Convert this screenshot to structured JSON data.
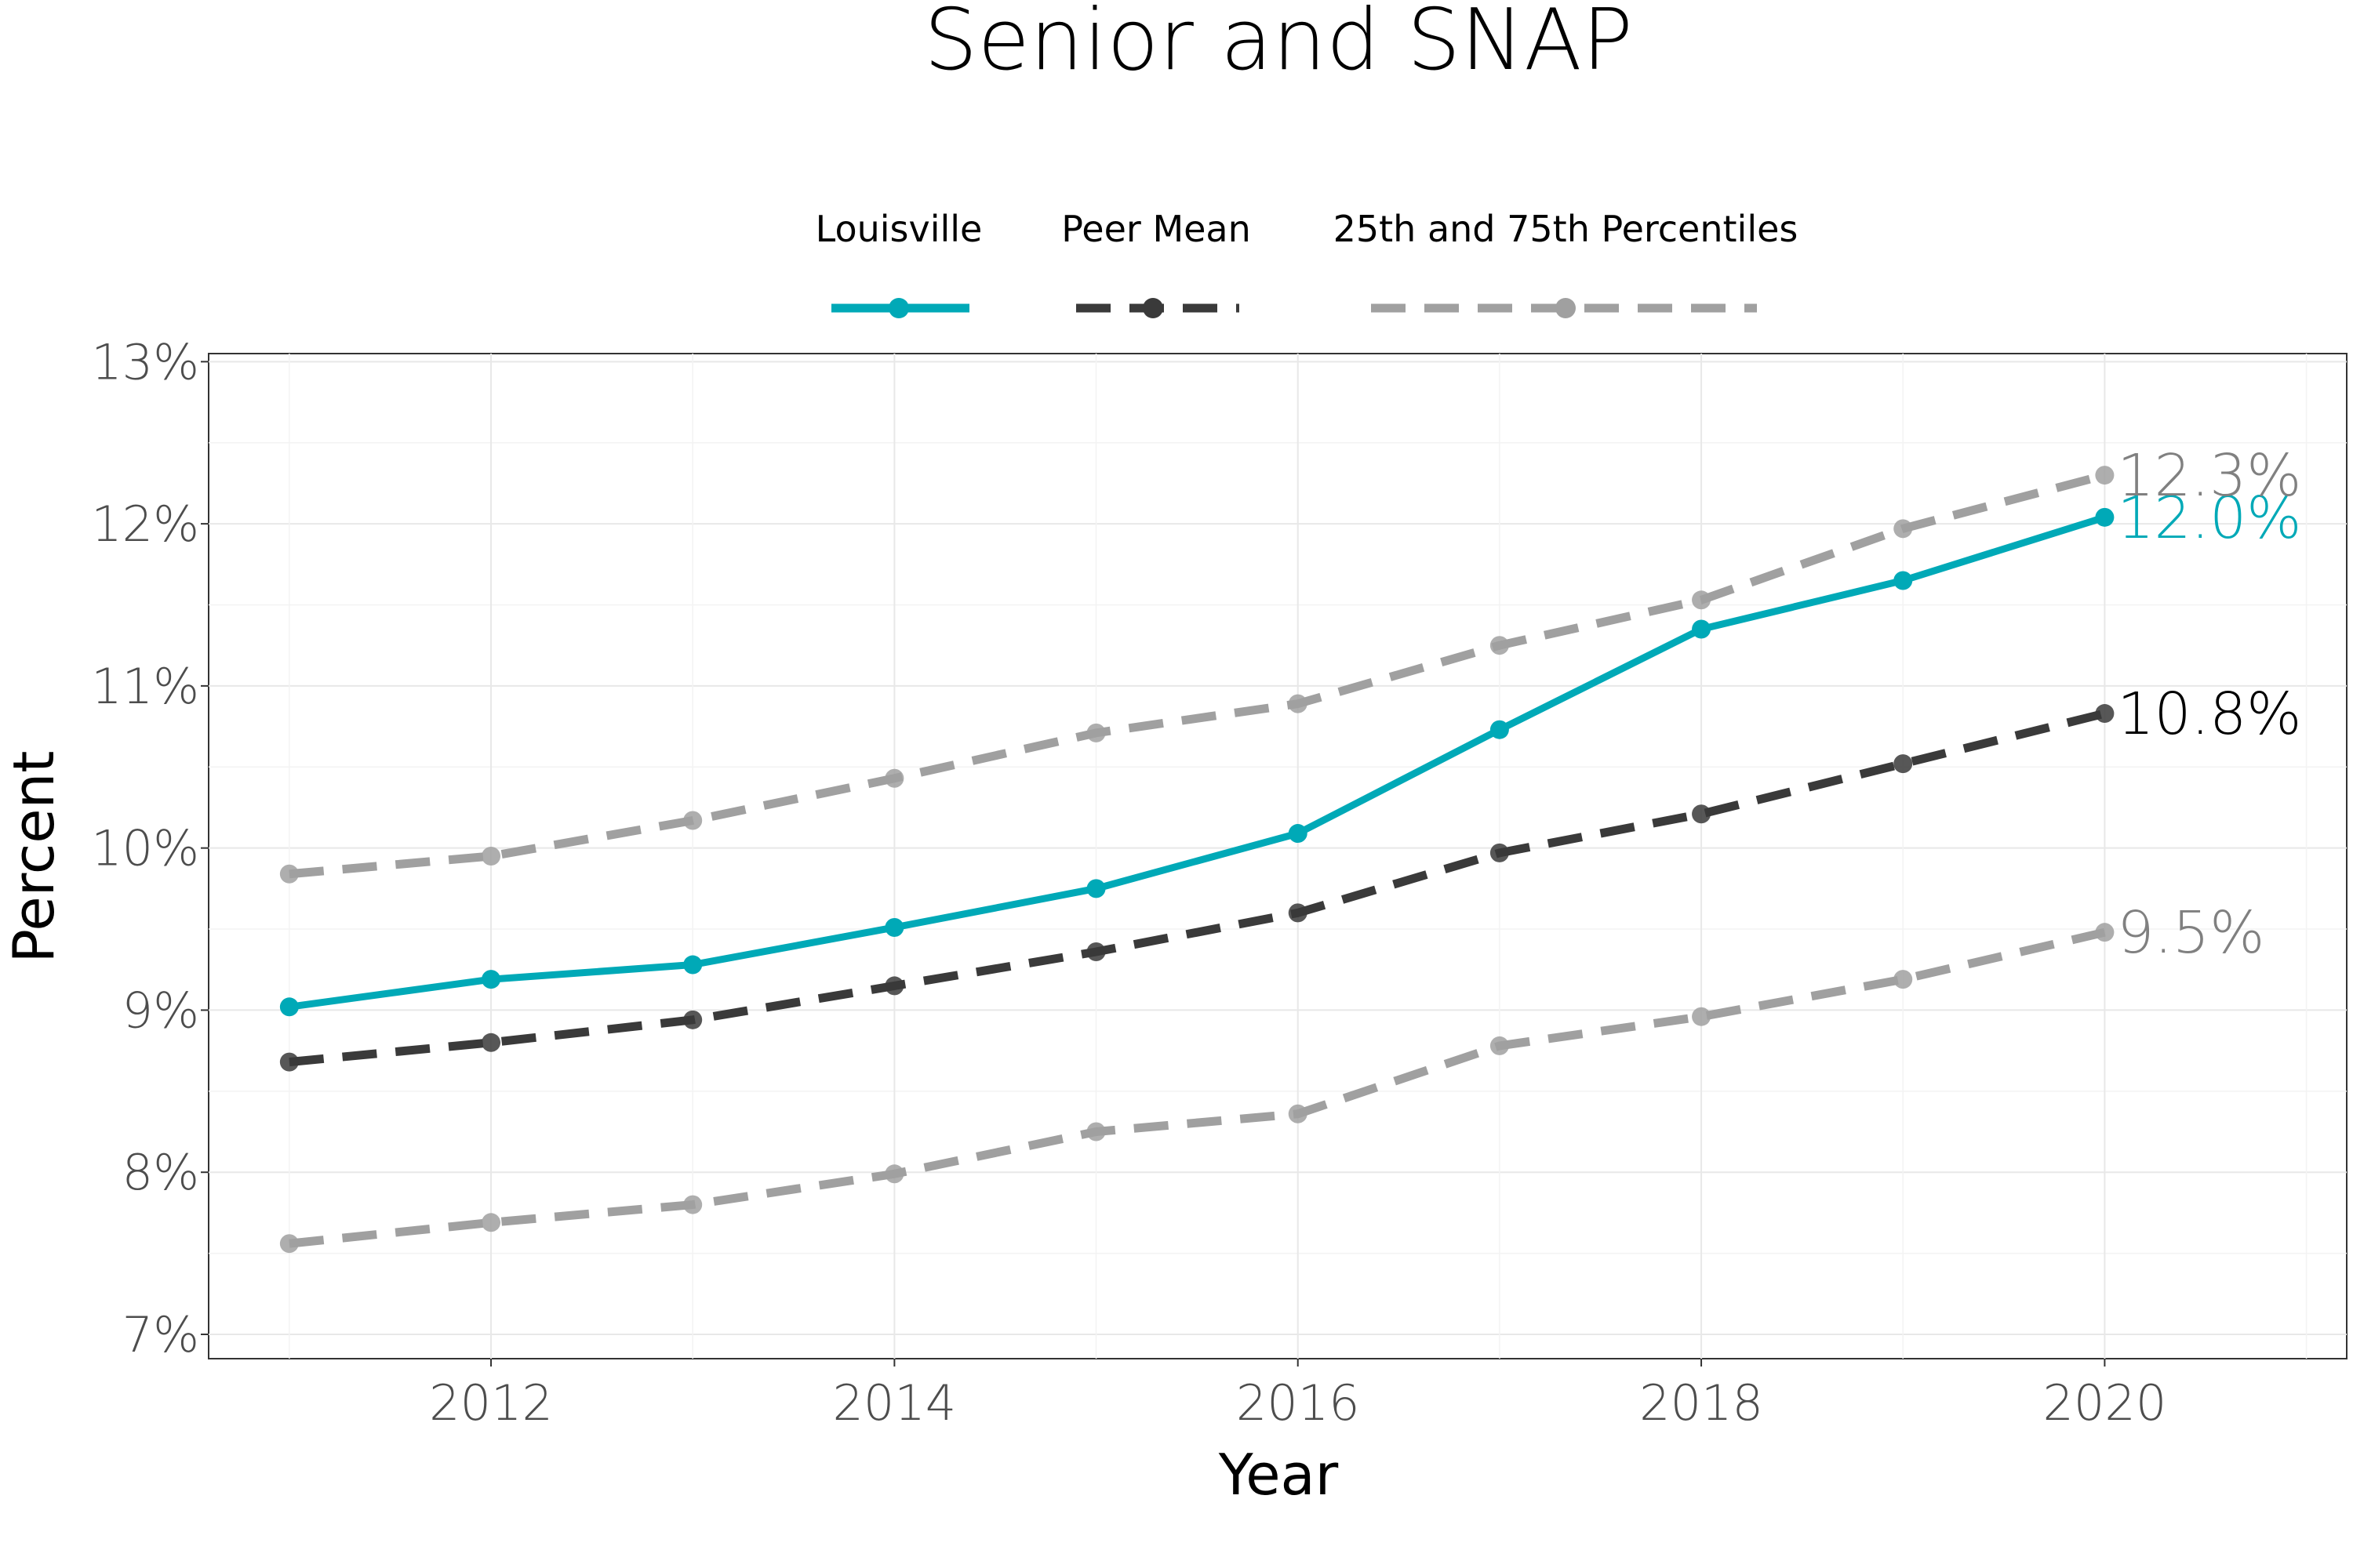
{
  "chart_data": {
    "type": "line",
    "title": "Senior and SNAP",
    "xlabel": "Year",
    "ylabel": "Percent",
    "xlim": [
      2010.6,
      2021.2
    ],
    "ylim": [
      6.85,
      13.05
    ],
    "x_ticks": [
      2012,
      2014,
      2016,
      2018,
      2020
    ],
    "y_ticks": [
      7,
      8,
      9,
      10,
      11,
      12,
      13
    ],
    "y_tick_labels": [
      "7%",
      "8%",
      "9%",
      "10%",
      "11%",
      "12%",
      "13%"
    ],
    "x": [
      2011,
      2012,
      2013,
      2014,
      2015,
      2016,
      2017,
      2018,
      2019,
      2020
    ],
    "grid": true,
    "legend_position": "top",
    "legend": [
      {
        "label": "Louisville",
        "style": "solid",
        "color": "#00a9b7"
      },
      {
        "label": "Peer Mean",
        "style": "dashed",
        "color": "#3a3a3a"
      },
      {
        "label": "25th and 75th Percentiles",
        "style": "dashed",
        "color": "#a0a0a0"
      }
    ],
    "series": [
      {
        "name": "Louisville",
        "color": "#00a9b7",
        "dashed": false,
        "values": [
          9.02,
          9.19,
          9.28,
          9.51,
          9.75,
          10.09,
          10.73,
          11.35,
          11.65,
          12.04
        ],
        "end_label": "12.0%"
      },
      {
        "name": "Peer Mean",
        "color": "#3a3a3a",
        "dashed": true,
        "values": [
          8.68,
          8.8,
          8.94,
          9.15,
          9.36,
          9.6,
          9.97,
          10.21,
          10.52,
          10.83
        ],
        "end_label": "10.8%"
      },
      {
        "name": "75th Percentile",
        "color": "#a0a0a0",
        "dashed": true,
        "values": [
          9.84,
          9.95,
          10.17,
          10.43,
          10.71,
          10.89,
          11.25,
          11.53,
          11.97,
          12.3
        ],
        "end_label": "12.3%"
      },
      {
        "name": "25th Percentile",
        "color": "#a0a0a0",
        "dashed": true,
        "values": [
          7.56,
          7.69,
          7.8,
          7.99,
          8.25,
          8.36,
          8.78,
          8.96,
          9.19,
          9.48
        ],
        "end_label": "9.5%"
      }
    ],
    "end_label_colors": [
      "#00a9b7",
      "#000000",
      "#808080",
      "#808080"
    ]
  }
}
